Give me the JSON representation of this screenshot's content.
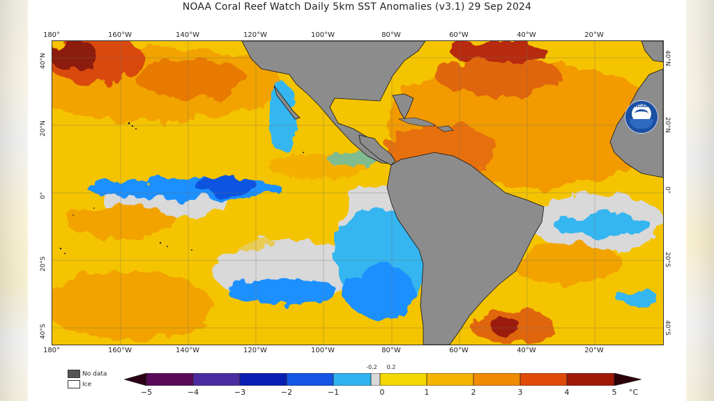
{
  "title": "NOAA Coral Reef Watch Daily 5km SST Anomalies  (v3.1)   29 Sep 2024",
  "map": {
    "lon_labels": [
      "180°",
      "160°W",
      "140°W",
      "120°W",
      "100°W",
      "80°W",
      "60°W",
      "40°W",
      "20°W"
    ],
    "lat_labels": [
      "40°N",
      "20°N",
      "0°",
      "20°S",
      "40°S"
    ],
    "logo_text": "NOAA"
  },
  "legend": {
    "no_data_label": "No data",
    "ice_label": "Ice",
    "ticks": [
      "−5",
      "−4",
      "−3",
      "−2",
      "−1",
      "0",
      "1",
      "2",
      "3",
      "4",
      "5"
    ],
    "small_ticks": [
      "-0.2",
      "0.2"
    ],
    "unit": "°C",
    "colors": {
      "no_data": "#555555",
      "ice": "#ffffff",
      "land": "#8c8c8c",
      "neutral": "#d9d9d9"
    }
  }
}
